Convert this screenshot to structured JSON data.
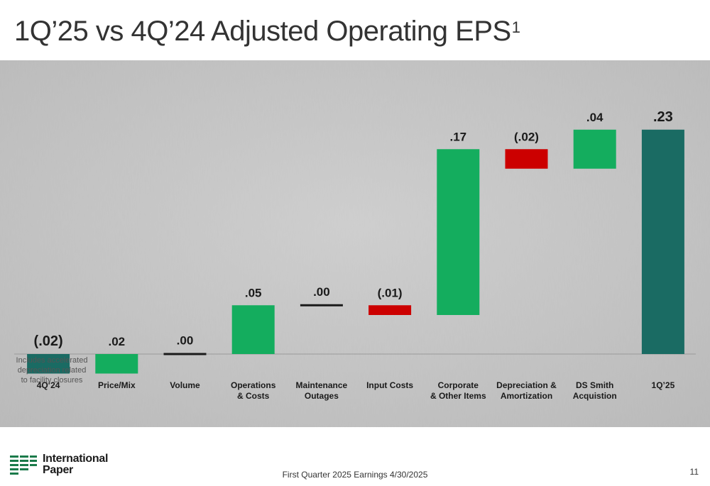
{
  "title": "1Q’25 vs 4Q’24 Adjusted Operating EPS",
  "title_footnote": "1",
  "note": {
    "lines": [
      "Includes accelerated",
      "depreciation related",
      "to facility closures"
    ]
  },
  "footer": {
    "text": "First Quarter 2025 Earnings 4/30/2025",
    "page": "11"
  },
  "logo": {
    "line1": "International",
    "line2": "Paper"
  },
  "colors": {
    "total": "#1a6b63",
    "increase": "#14ad5e",
    "decrease": "#cc0000",
    "zero": "#1a1a1a",
    "background": "#c9c9c9"
  },
  "chart_data": {
    "type": "bar",
    "subtype": "waterfall",
    "title": "1Q’25 vs 4Q’24 Adjusted Operating EPS",
    "categories": [
      "4Q’24",
      "Price/Mix",
      "Volume",
      "Operations\n& Costs",
      "Maintenance\nOutages",
      "Input Costs",
      "Corporate\n& Other Items",
      "Depreciation &\nAmortization",
      "DS Smith\nAcquistion",
      "1Q’25"
    ],
    "values": [
      -0.02,
      0.02,
      0.0,
      0.05,
      0.0,
      -0.01,
      0.17,
      -0.02,
      0.04,
      0.23
    ],
    "labels": [
      "(.02)",
      ".02",
      ".00",
      ".05",
      ".00",
      "(.01)",
      ".17",
      "(.02)",
      ".04",
      ".23"
    ],
    "kinds": [
      "total",
      "increase",
      "zero",
      "increase",
      "zero",
      "decrease",
      "increase",
      "decrease",
      "increase",
      "total"
    ],
    "ylim": [
      -0.02,
      0.23
    ],
    "xlabel": "",
    "ylabel": "",
    "grid": false,
    "legend": "none"
  }
}
